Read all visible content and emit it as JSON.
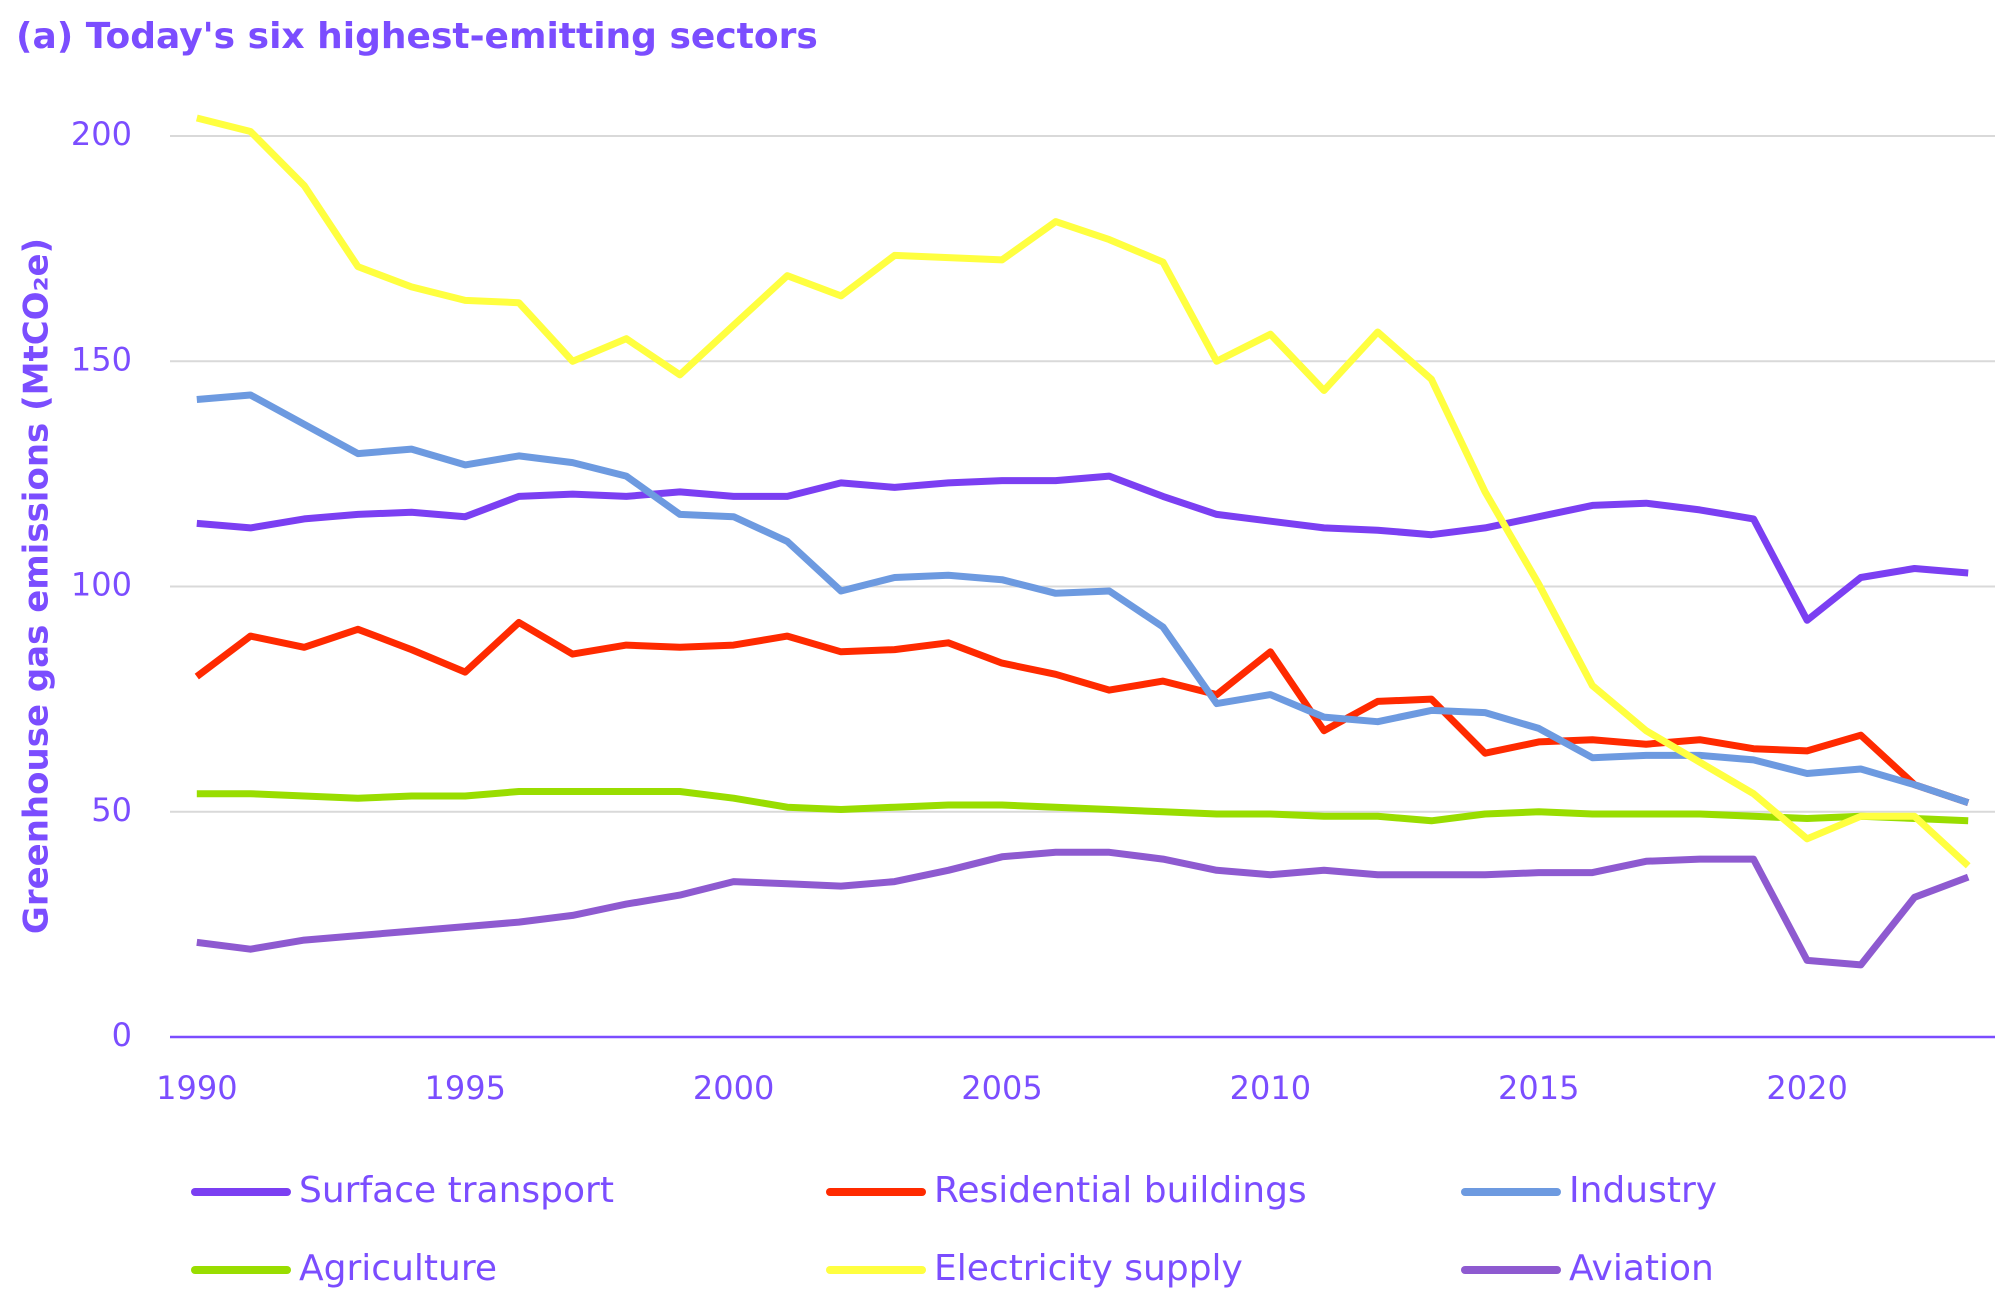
{
  "chart_data": {
    "type": "line",
    "title": "(a) Today's six highest-emitting sectors",
    "y_label": "Greenhouse gas emissions (MtCO₂e)",
    "x": [
      1990,
      1991,
      1992,
      1993,
      1994,
      1995,
      1996,
      1997,
      1998,
      1999,
      2000,
      2001,
      2002,
      2003,
      2004,
      2005,
      2006,
      2007,
      2008,
      2009,
      2010,
      2011,
      2012,
      2013,
      2014,
      2015,
      2016,
      2017,
      2018,
      2019,
      2020,
      2021,
      2022,
      2023
    ],
    "xlim": [
      1989.5,
      2023.5
    ],
    "xticks": [
      1990,
      1995,
      2000,
      2005,
      2010,
      2015,
      2020
    ],
    "ylim": [
      0,
      200
    ],
    "yticks": [
      0,
      50,
      100,
      150,
      200
    ],
    "grid": true,
    "series": [
      {
        "name": "Surface transport",
        "color": "#7b3ff2",
        "values": [
          114,
          113,
          115,
          116,
          116.5,
          115.5,
          120,
          120.5,
          120,
          121,
          120,
          120,
          123,
          122,
          123,
          123.5,
          123.5,
          124.5,
          120,
          116,
          114.5,
          113,
          112.5,
          111.5,
          113,
          115.5,
          118,
          118.5,
          117,
          115,
          92.5,
          102,
          104,
          103
        ]
      },
      {
        "name": "Residential buildings",
        "color": "#ff2a00",
        "values": [
          80,
          89,
          86.5,
          90.5,
          86,
          81,
          92,
          85,
          87,
          86.5,
          87,
          89,
          85.5,
          86,
          87.5,
          83,
          80.5,
          77,
          79,
          76,
          85.5,
          68,
          74.5,
          75,
          63,
          65.5,
          66,
          65,
          66,
          64,
          63.5,
          67,
          56,
          52
        ]
      },
      {
        "name": "Industry",
        "color": "#6d9ae0",
        "values": [
          141.5,
          142.5,
          136,
          129.5,
          130.5,
          127,
          129,
          127.5,
          124.5,
          116,
          115.5,
          110,
          99,
          102,
          102.5,
          101.5,
          98.5,
          99,
          91,
          74,
          76,
          71,
          70,
          72.5,
          72,
          68.5,
          62,
          62.5,
          62.5,
          61.5,
          58.5,
          59.5,
          56,
          52
        ]
      },
      {
        "name": "Agriculture",
        "color": "#99dd00",
        "values": [
          54,
          54,
          53.5,
          53,
          53.5,
          53.5,
          54.5,
          54.5,
          54.5,
          54.5,
          53,
          51,
          50.5,
          51,
          51.5,
          51.5,
          51,
          50.5,
          50,
          49.5,
          49.5,
          49,
          49,
          48,
          49.5,
          50,
          49.5,
          49.5,
          49.5,
          49,
          48.5,
          49,
          48.5,
          48
        ]
      },
      {
        "name": "Electricity supply",
        "color": "#ffff40",
        "values": [
          204,
          201,
          189,
          171,
          166.5,
          163.5,
          163,
          150,
          155,
          147,
          158,
          169,
          164.5,
          173.5,
          173,
          172.5,
          181,
          177,
          172,
          150,
          156,
          143.5,
          156.5,
          146,
          121,
          100.5,
          78,
          68,
          61,
          54,
          44,
          49,
          49,
          38
        ]
      },
      {
        "name": "Aviation",
        "color": "#8e5ad0",
        "values": [
          21,
          19.5,
          21.5,
          22.5,
          23.5,
          24.5,
          25.5,
          27,
          29.5,
          31.5,
          34.5,
          34,
          33.5,
          34.5,
          37,
          40,
          41,
          41,
          39.5,
          37,
          36,
          37,
          36,
          36,
          36,
          36.5,
          36.5,
          39,
          39.5,
          39.5,
          17,
          16,
          31,
          35.5
        ]
      }
    ]
  }
}
